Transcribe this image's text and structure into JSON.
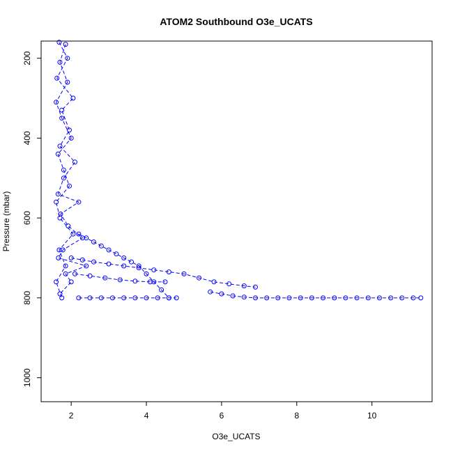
{
  "chart_data": {
    "type": "scatter",
    "title": "ATOM2 Southbound O3e_UCATS",
    "xlabel": "O3e_UCATS",
    "ylabel": "Pressure (mbar)",
    "xlim": [
      1.2,
      11.6
    ],
    "ylim": [
      1060,
      157
    ],
    "y_reversed": true,
    "x_ticks": [
      2,
      4,
      6,
      8,
      10
    ],
    "y_ticks": [
      200,
      400,
      600,
      800,
      1000
    ],
    "x_tick_labels": [
      "2",
      "4",
      "6",
      "8",
      "10"
    ],
    "y_tick_labels": [
      "200",
      "400",
      "600",
      "800",
      "1000"
    ],
    "grid": false,
    "legend": "none",
    "marker": "open-circle",
    "line_style": "dashed",
    "color": "#0000ff",
    "series": [
      {
        "x": [
          1.68,
          1.9,
          1.62,
          2.05,
          1.75,
          1.95,
          1.7,
          2.1,
          1.8,
          1.65,
          2.2,
          1.72,
          1.92,
          2.3,
          1.78,
          1.66,
          2.4,
          1.85,
          2.0,
          1.7
        ],
        "y": [
          160,
          200,
          250,
          300,
          330,
          380,
          420,
          460,
          500,
          540,
          560,
          590,
          620,
          650,
          680,
          700,
          720,
          740,
          760,
          790
        ]
      },
      {
        "x": [
          1.85,
          1.7,
          1.9,
          1.6,
          1.75,
          2.0,
          1.65,
          1.8,
          1.95,
          1.6,
          1.7,
          2.05,
          1.68,
          1.85,
          1.6,
          1.75
        ],
        "y": [
          165,
          210,
          260,
          310,
          350,
          400,
          440,
          480,
          520,
          560,
          600,
          640,
          680,
          720,
          760,
          800
        ]
      },
      {
        "x": [
          2.2,
          2.4,
          2.6,
          2.8,
          3.0,
          3.2,
          3.4,
          3.6,
          3.8,
          4.0,
          4.2,
          4.4,
          4.6
        ],
        "y": [
          640,
          650,
          660,
          670,
          680,
          690,
          700,
          710,
          720,
          740,
          760,
          780,
          800
        ]
      },
      {
        "x": [
          2.0,
          2.3,
          2.6,
          3.0,
          3.4,
          3.8,
          4.2,
          4.6,
          5.0,
          5.4,
          5.8,
          6.2,
          6.6,
          6.9
        ],
        "y": [
          700,
          705,
          710,
          715,
          720,
          725,
          730,
          735,
          740,
          750,
          760,
          765,
          770,
          773
        ]
      },
      {
        "x": [
          2.1,
          2.5,
          2.9,
          3.3,
          3.7,
          4.1,
          4.5
        ],
        "y": [
          740,
          745,
          750,
          755,
          758,
          760,
          760
        ]
      },
      {
        "x": [
          2.2,
          2.5,
          2.8,
          3.1,
          3.4,
          3.7,
          4.0,
          4.3,
          4.6,
          4.8
        ],
        "y": [
          800,
          800,
          800,
          800,
          800,
          800,
          800,
          800,
          800,
          800
        ]
      },
      {
        "x": [
          5.7,
          6.0,
          6.3,
          6.6,
          6.9,
          7.2,
          7.5,
          7.8,
          8.1,
          8.4,
          8.7,
          9.0,
          9.3,
          9.6,
          9.9,
          10.2,
          10.5,
          10.8,
          11.1,
          11.3
        ],
        "y": [
          785,
          790,
          795,
          798,
          800,
          800,
          800,
          800,
          800,
          800,
          800,
          800,
          800,
          800,
          800,
          800,
          800,
          800,
          800,
          800
        ]
      }
    ]
  }
}
